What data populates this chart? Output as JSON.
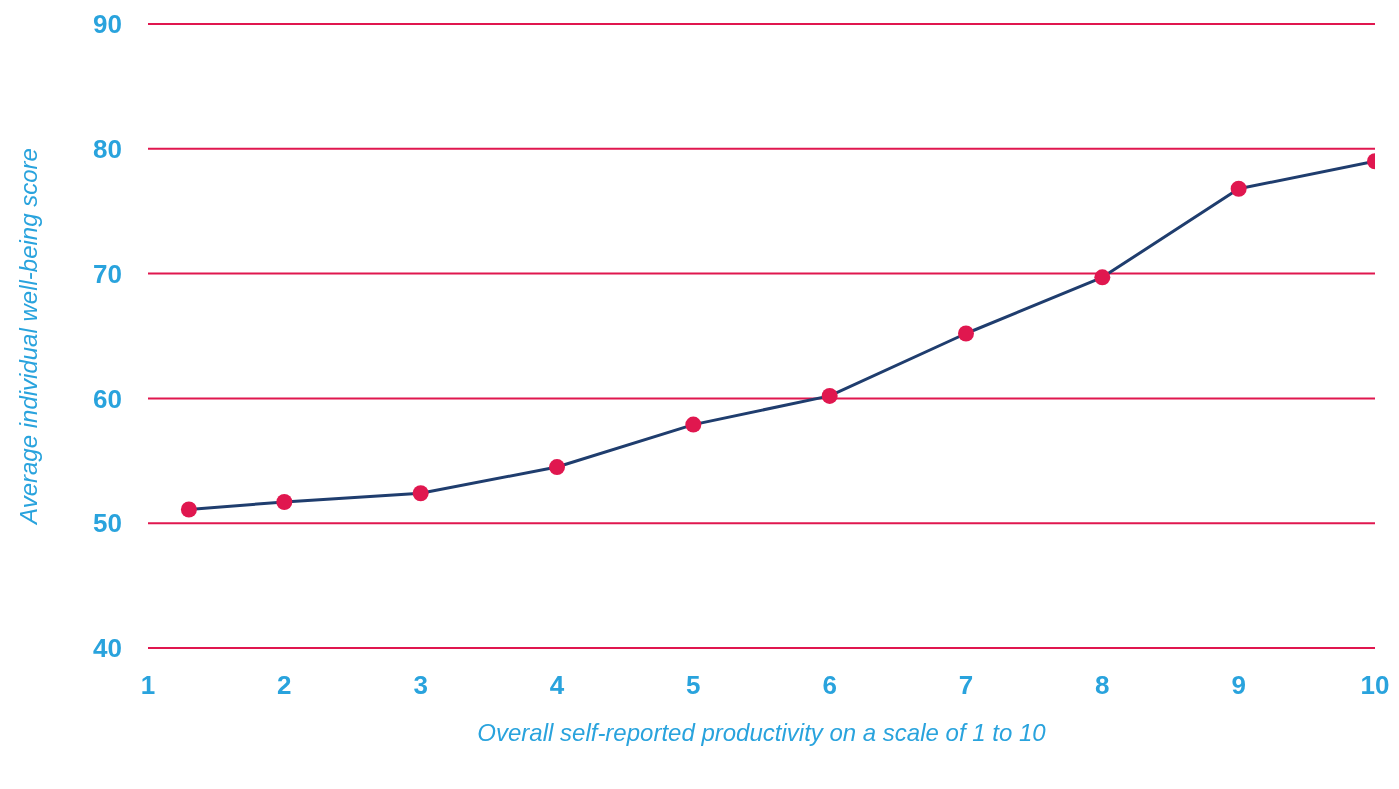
{
  "chart_data": {
    "type": "line",
    "xlabel": "Overall self-reported productivity on a scale of 1 to 10",
    "ylabel": "Average individual well-being score",
    "x": [
      1.3,
      2,
      3,
      4,
      5,
      6,
      7,
      8,
      9,
      10
    ],
    "series": [
      {
        "color": "#1f3d6e",
        "values": [
          51.1,
          51.7,
          52.4,
          54.5,
          57.9,
          60.2,
          65.2,
          69.7,
          76.8,
          79.0
        ]
      }
    ],
    "xlim": [
      1,
      10
    ],
    "xticks": [
      1,
      2,
      3,
      4,
      5,
      6,
      7,
      8,
      9,
      10
    ],
    "ylim": [
      40,
      90
    ],
    "yticks": [
      40,
      50,
      60,
      70,
      80,
      90
    ],
    "grid": "y",
    "marker": "circle",
    "line_style": "solid",
    "legend": false
  }
}
